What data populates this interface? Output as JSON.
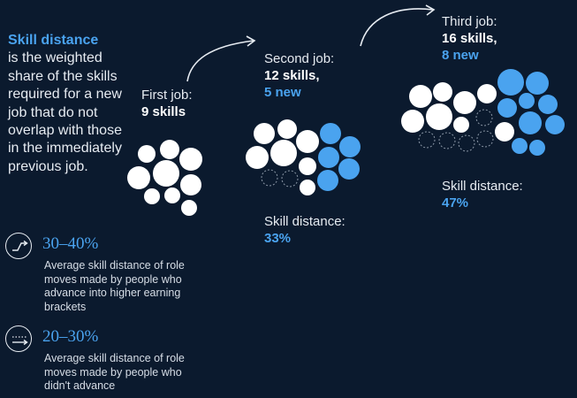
{
  "intro": {
    "term": "Skill distance",
    "definition": "is the weighted share of the skills required for a new job that do not overlap with those in the immediately previous job."
  },
  "stats": [
    {
      "icon": "step-up-arrow-icon",
      "value": "30–40%",
      "description": "Average skill distance of role moves made by people who advance into higher earning brackets"
    },
    {
      "icon": "flat-arrow-icon",
      "value": "20–30%",
      "description": "Average skill distance of role moves made by people who didn't advance"
    }
  ],
  "jobs": [
    {
      "name": "First job:",
      "skills": "9 skills"
    },
    {
      "name": "Second job:",
      "skills": "12 skills,",
      "new": "5 new",
      "distance_label": "Skill distance:",
      "distance_value": "33%"
    },
    {
      "name": "Third job:",
      "skills": "16 skills,",
      "new": "8 new",
      "distance_label": "Skill distance:",
      "distance_value": "47%"
    }
  ],
  "colors": {
    "background": "#0b1a2e",
    "accent_blue": "#4aa3ef",
    "existing_skill": "#ffffff",
    "dropped_skill_outline": "#8b97a6"
  }
}
